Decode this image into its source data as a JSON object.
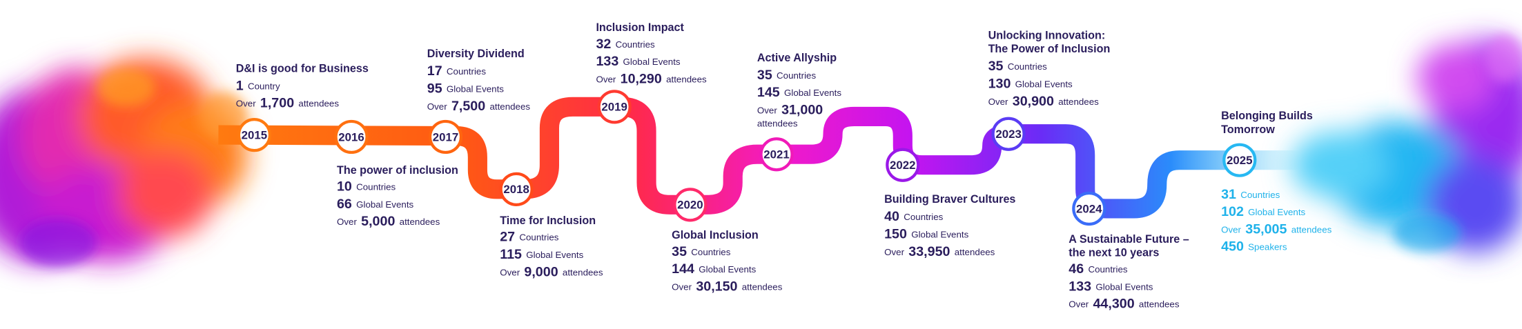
{
  "milestones": [
    {
      "year": "2015",
      "title": [
        "D&I is good for Business"
      ],
      "stats": [
        {
          "value": "1",
          "unit": "Country"
        },
        {
          "prefix": "Over",
          "value": "1,700",
          "unit": "attendees"
        }
      ]
    },
    {
      "year": "2016",
      "title": [
        "The power of inclusion"
      ],
      "stats": [
        {
          "value": "10",
          "unit": "Countries"
        },
        {
          "value": "66",
          "unit": "Global Events"
        },
        {
          "prefix": "Over",
          "value": "5,000",
          "unit": "attendees"
        }
      ]
    },
    {
      "year": "2017",
      "title": [
        "Diversity Dividend"
      ],
      "stats": [
        {
          "value": "17",
          "unit": "Countries"
        },
        {
          "value": "95",
          "unit": "Global Events"
        },
        {
          "prefix": "Over",
          "value": "7,500",
          "unit": "attendees"
        }
      ]
    },
    {
      "year": "2018",
      "title": [
        "Time for Inclusion"
      ],
      "stats": [
        {
          "value": "27",
          "unit": "Countries"
        },
        {
          "value": "115",
          "unit": "Global Events"
        },
        {
          "prefix": "Over",
          "value": "9,000",
          "unit": "attendees"
        }
      ]
    },
    {
      "year": "2019",
      "title": [
        "Inclusion Impact"
      ],
      "stats": [
        {
          "value": "32",
          "unit": "Countries"
        },
        {
          "value": "133",
          "unit": "Global Events"
        },
        {
          "prefix": "Over",
          "value": "10,290",
          "unit": "attendees"
        }
      ]
    },
    {
      "year": "2020",
      "title": [
        "Global Inclusion"
      ],
      "stats": [
        {
          "value": "35",
          "unit": "Countries"
        },
        {
          "value": "144",
          "unit": "Global Events"
        },
        {
          "prefix": "Over",
          "value": "30,150",
          "unit": "attendees"
        }
      ]
    },
    {
      "year": "2021",
      "title": [
        "Active Allyship"
      ],
      "stats": [
        {
          "value": "35",
          "unit": "Countries"
        },
        {
          "value": "145",
          "unit": "Global Events"
        },
        {
          "prefix": "Over",
          "value": "31,000",
          "unit": "attendees"
        }
      ]
    },
    {
      "year": "2022",
      "title": [
        "Building Braver Cultures"
      ],
      "stats": [
        {
          "value": "40",
          "unit": "Countries"
        },
        {
          "value": "150",
          "unit": "Global Events"
        },
        {
          "prefix": "Over",
          "value": "33,950",
          "unit": "attendees"
        }
      ]
    },
    {
      "year": "2023",
      "title": [
        "Unlocking Innovation:",
        "The Power of Inclusion"
      ],
      "stats": [
        {
          "value": "35",
          "unit": "Countries"
        },
        {
          "value": "130",
          "unit": "Global Events"
        },
        {
          "prefix": "Over",
          "value": "30,900",
          "unit": "attendees"
        }
      ]
    },
    {
      "year": "2024",
      "title": [
        "A Sustainable Future –",
        "the next 10 years"
      ],
      "stats": [
        {
          "value": "46",
          "unit": "Countries"
        },
        {
          "value": "133",
          "unit": "Global Events"
        },
        {
          "prefix": "Over",
          "value": "44,300",
          "unit": "attendees"
        }
      ]
    },
    {
      "year": "2025",
      "title": [
        "Belonging Builds",
        "Tomorrow"
      ],
      "stats": [
        {
          "value": "31",
          "unit": "Countries"
        },
        {
          "value": "102",
          "unit": "Global Events"
        },
        {
          "prefix": "Over",
          "value": "35,005",
          "unit": "attendees"
        },
        {
          "value": "450",
          "unit": "Speakers"
        }
      ]
    }
  ]
}
